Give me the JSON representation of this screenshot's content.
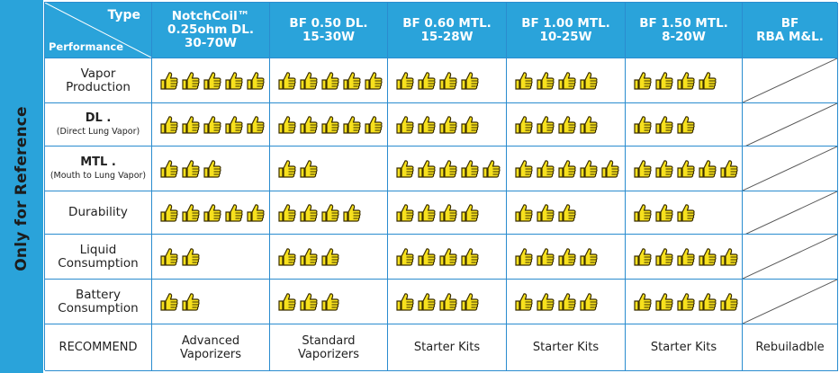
{
  "sidebar": {
    "label": "Only for Reference"
  },
  "header": {
    "type_label": "Type",
    "performance_label": "Performance",
    "columns": [
      {
        "line1": "NotchCoil™",
        "line2": "0.25ohm DL.",
        "line3": "30-70W"
      },
      {
        "line1": "BF 0.50 DL.",
        "line2": "15-30W"
      },
      {
        "line1": "BF 0.60 MTL.",
        "line2": "15-28W"
      },
      {
        "line1": "BF 1.00 MTL.",
        "line2": "10-25W"
      },
      {
        "line1": "BF 1.50 MTL.",
        "line2": "8-20W"
      },
      {
        "line1": "BF",
        "line2": "RBA M&L."
      }
    ]
  },
  "rows": [
    {
      "line1": "Vapor",
      "line2": "Production",
      "ratings": [
        5,
        5,
        4,
        4,
        4
      ]
    },
    {
      "line1": "DL .",
      "line2": "(Direct Lung Vapor)",
      "ratings": [
        5,
        5,
        4,
        4,
        3
      ]
    },
    {
      "line1": "MTL .",
      "line2": "(Mouth to Lung Vapor)",
      "ratings": [
        3,
        2,
        5,
        5,
        5
      ]
    },
    {
      "line1": "Durability",
      "ratings": [
        5,
        4,
        4,
        3,
        3
      ]
    },
    {
      "line1": "Liquid",
      "line2": "Consumption",
      "ratings": [
        2,
        3,
        4,
        4,
        5
      ]
    },
    {
      "line1": "Battery",
      "line2": "Consumption",
      "ratings": [
        2,
        3,
        4,
        4,
        5
      ]
    }
  ],
  "recommend": {
    "label": "RECOMMEND",
    "values": [
      {
        "line1": "Advanced",
        "line2": "Vaporizers"
      },
      {
        "line1": "Standard",
        "line2": "Vaporizers"
      },
      {
        "line1": "Starter Kits"
      },
      {
        "line1": "Starter Kits"
      },
      {
        "line1": "Starter Kits"
      },
      {
        "line1": "Rebuiladble"
      }
    ]
  },
  "icon": "thumbs-up-icon",
  "colors": {
    "header_bg": "#2aa3da",
    "thumb_fill": "#f7e11d",
    "thumb_stroke": "#3a2e00",
    "grid_line": "#2a8ccf"
  }
}
